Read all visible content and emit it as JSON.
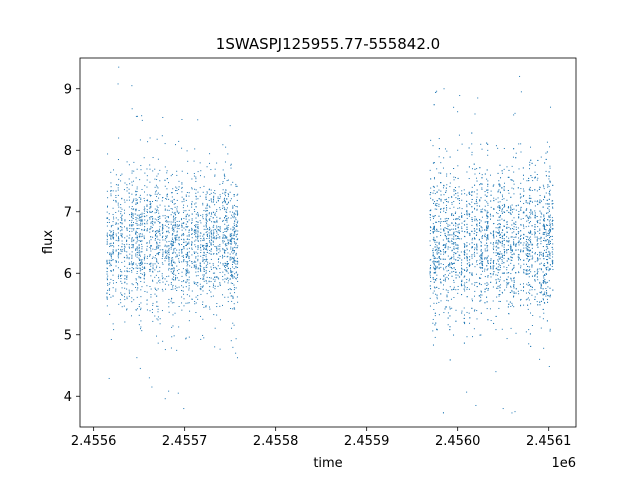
{
  "chart_data": {
    "type": "scatter",
    "title": "1SWASPJ125955.77-555842.0",
    "xlabel": "time",
    "ylabel": "flux",
    "x_offset_label": "1e6",
    "xlim": [
      2455585,
      2456130
    ],
    "ylim": [
      3.5,
      9.5
    ],
    "x_ticks": [
      2455600,
      2455700,
      2455800,
      2455900,
      2456000,
      2456100
    ],
    "x_tick_labels": [
      "2.4556",
      "2.4557",
      "2.4558",
      "2.4559",
      "2.4560",
      "2.4561"
    ],
    "y_ticks": [
      4,
      5,
      6,
      7,
      8,
      9
    ],
    "y_tick_labels": [
      "4",
      "5",
      "6",
      "7",
      "8",
      "9"
    ],
    "grid": false,
    "legend": "none",
    "marker_color": "#1f77b4",
    "series": [
      {
        "segments": [
          {
            "x_start": 2455615,
            "x_end": 2455760,
            "mean_flux": 6.5,
            "spread": 0.55,
            "n_points": 2400,
            "outliers": [
              [
                2455642,
                9.05
              ],
              [
                2455647,
                8.55
              ],
              [
                2455664,
                4.15
              ],
              [
                2455697,
                8.5
              ],
              [
                2455693,
                4.05
              ],
              [
                2455699,
                3.8
              ],
              [
                2455756,
                4.7
              ],
              [
                2455750,
                8.4
              ],
              [
                2455662,
                8.2
              ]
            ]
          },
          {
            "x_start": 2455970,
            "x_end": 2456105,
            "mean_flux": 6.5,
            "spread": 0.6,
            "n_points": 2800,
            "outliers": [
              [
                2455985,
                9.0
              ],
              [
                2456068,
                9.2
              ],
              [
                2456022,
                8.85
              ],
              [
                2456070,
                8.95
              ],
              [
                2456063,
                8.6
              ],
              [
                2456020,
                3.85
              ],
              [
                2456050,
                3.8
              ],
              [
                2456063,
                3.75
              ],
              [
                2456102,
                8.7
              ],
              [
                2456000,
                8.0
              ],
              [
                2456042,
                4.4
              ],
              [
                2456090,
                4.6
              ]
            ]
          }
        ]
      }
    ]
  }
}
